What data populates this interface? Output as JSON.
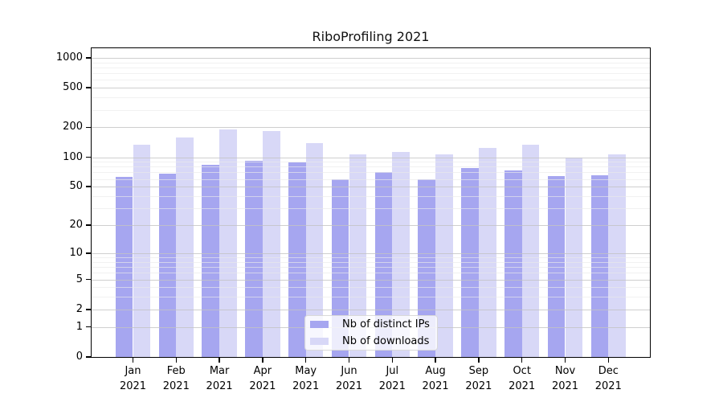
{
  "title": "RiboProfiling 2021",
  "colors": {
    "distinct_ips": "#a6a6f0",
    "downloads": "#d8d8f7",
    "axis": "#000000",
    "grid_major": "#c3c3c3",
    "grid_minor": "#ededed",
    "legend_border": "#d9d9d9",
    "legend_background": "rgba(255,255,255,0.8)"
  },
  "chart_data": {
    "type": "bar",
    "title": "RiboProfiling 2021",
    "categories": [
      "Jan 2021",
      "Feb 2021",
      "Mar 2021",
      "Apr 2021",
      "May 2021",
      "Jun 2021",
      "Jul 2021",
      "Aug 2021",
      "Sep 2021",
      "Oct 2021",
      "Nov 2021",
      "Dec 2021"
    ],
    "series": [
      {
        "name": "Nb of distinct IPs",
        "color_key": "distinct_ips",
        "values": [
          63,
          68,
          84,
          92,
          89,
          60,
          70,
          60,
          77,
          74,
          64,
          65
        ]
      },
      {
        "name": "Nb of downloads",
        "color_key": "downloads",
        "values": [
          134,
          158,
          191,
          183,
          139,
          107,
          113,
          106,
          124,
          134,
          99,
          106
        ]
      }
    ],
    "yscale": "symlog-log1p",
    "ylim": [
      0,
      1000
    ],
    "y_ticks": [
      0,
      1,
      2,
      5,
      10,
      20,
      50,
      100,
      200,
      500,
      1000
    ],
    "y_minor_ticks": [
      3,
      4,
      6,
      7,
      8,
      9,
      30,
      40,
      60,
      70,
      80,
      90,
      300,
      400,
      600,
      700,
      800,
      900
    ],
    "grid": true,
    "legend_position": "lower center",
    "legend": [
      "Nb of distinct IPs",
      "Nb of downloads"
    ]
  }
}
